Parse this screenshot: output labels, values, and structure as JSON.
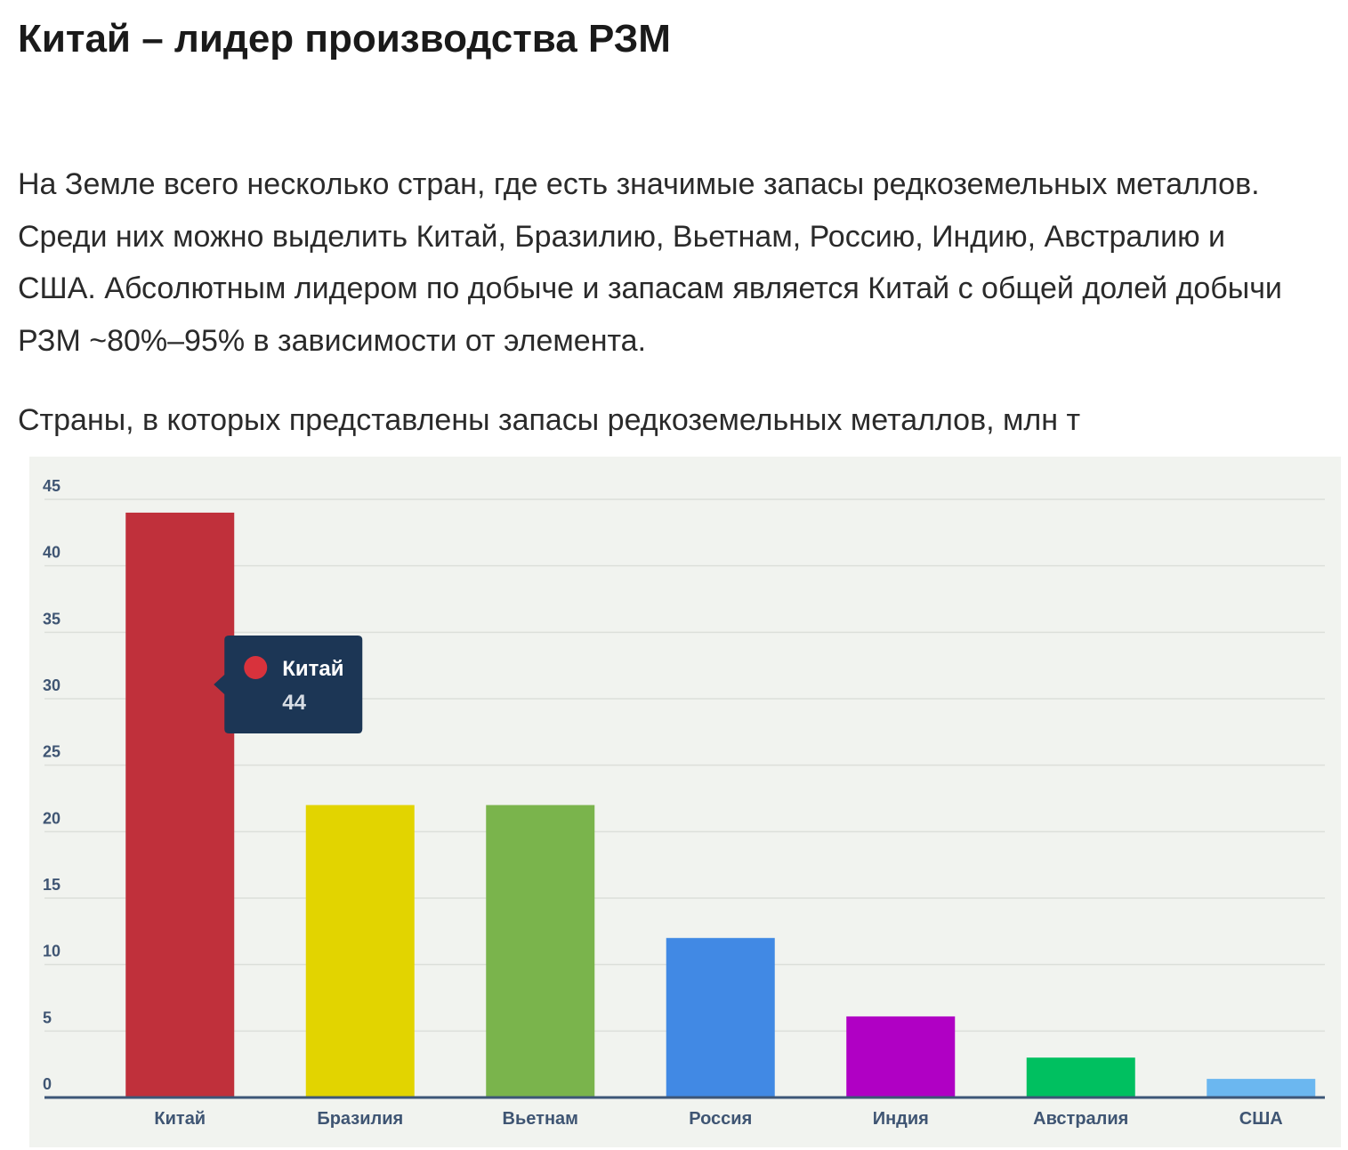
{
  "article": {
    "heading": "Китай – лидер производства РЗМ",
    "paragraph": "На Земле всего несколько стран, где есть значимые запасы редкоземельных металлов. Среди них можно выделить Китай, Бразилию, Вьетнам, Россию, Индию, Австралию и США. Абсолютным лидером по добыче и запасам является Китай с общей долей добычи РЗМ ~80%–95% в зависимости от элемента.",
    "chart_caption": "Страны, в которых представлены запасы редкоземельных металлов, млн т"
  },
  "chart_data": {
    "type": "bar",
    "title": "",
    "xlabel": "",
    "ylabel": "",
    "categories": [
      "Китай",
      "Бразилия",
      "Вьетнам",
      "Россия",
      "Индия",
      "Австралия",
      "США"
    ],
    "values": [
      44,
      22,
      22,
      12,
      6.1,
      3,
      1.4
    ],
    "colors": [
      "#c0303b",
      "#e2d400",
      "#7ab44c",
      "#4189e4",
      "#b000c4",
      "#00c060",
      "#6bb7f0"
    ],
    "ylim": [
      0,
      45
    ],
    "yticks": [
      0,
      5,
      10,
      15,
      20,
      25,
      30,
      35,
      40,
      45
    ],
    "grid": true,
    "background_color": "#f1f3ef",
    "tooltip": {
      "label": "Китай",
      "value": "44",
      "marker_color": "#d8323c",
      "background_color": "#1c3655"
    }
  }
}
